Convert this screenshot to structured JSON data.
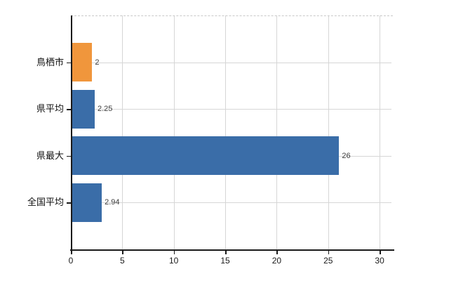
{
  "chart_data": {
    "type": "bar",
    "orientation": "horizontal",
    "title": "",
    "xlabel": "",
    "ylabel": "",
    "categories": [
      "鳥栖市",
      "県平均",
      "県最大",
      "全国平均"
    ],
    "values": [
      2,
      2.25,
      26,
      2.94
    ],
    "value_labels": [
      "2",
      "2.25",
      "26",
      "2.94"
    ],
    "bar_colors": [
      "#f0963c",
      "#3a6da8",
      "#3a6da8",
      "#3a6da8"
    ],
    "x_ticks": [
      "0",
      "5",
      "10",
      "15",
      "20",
      "25",
      "30"
    ],
    "x_tick_values": [
      0,
      5,
      10,
      15,
      20,
      25,
      30
    ],
    "xlim": [
      0,
      31.3
    ],
    "grid": "both",
    "legend": "none"
  },
  "colors": {
    "background": "#ffffff",
    "bar_blue": "#3a6da8",
    "bar_orange": "#f0963c",
    "grid": "#d6d6d6",
    "axis": "#1a1a1a",
    "value_label": "#3d3d3d",
    "tick_label": "#1a1a1a",
    "plot_top_border": "#c9c9c9"
  }
}
